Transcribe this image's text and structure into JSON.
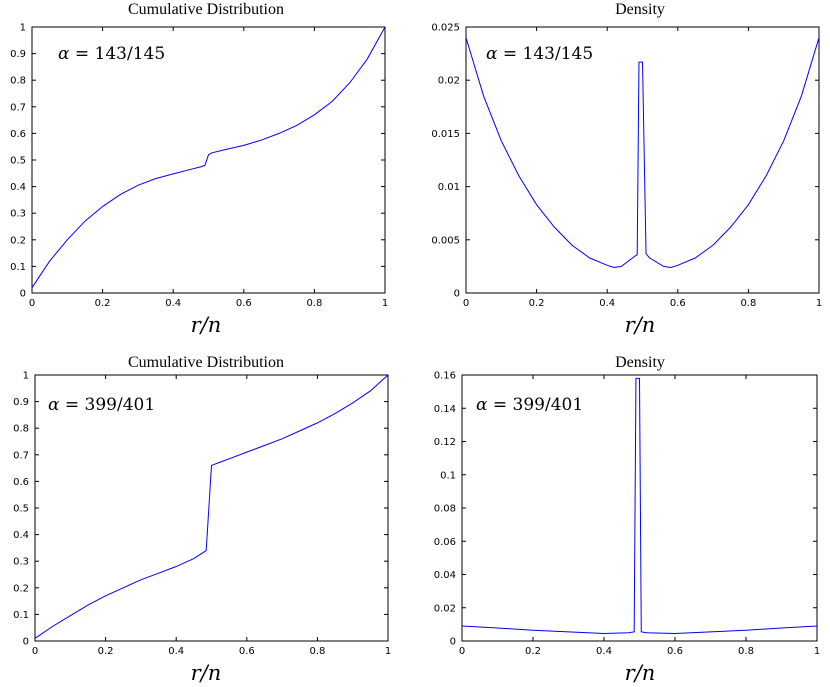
{
  "chart_data": [
    {
      "type": "line",
      "title": "Cumulative Distribution",
      "xlabel": "r/n",
      "ylabel": "",
      "annotation": {
        "symbol": "α",
        "text": " = 143/145"
      },
      "xlim": [
        0,
        1
      ],
      "ylim": [
        0,
        1
      ],
      "xticks": [
        "0",
        "0.2",
        "0.4",
        "0.6",
        "0.8",
        "1"
      ],
      "yticks": [
        "0",
        "0.1",
        "0.2",
        "0.3",
        "0.4",
        "0.5",
        "0.6",
        "0.7",
        "0.8",
        "0.9",
        "1"
      ],
      "color": "#0000ff",
      "series": [
        {
          "x": [
            0,
            0.05,
            0.1,
            0.15,
            0.2,
            0.25,
            0.3,
            0.35,
            0.4,
            0.45,
            0.48,
            0.49,
            0.5,
            0.51,
            0.55,
            0.6,
            0.65,
            0.7,
            0.75,
            0.8,
            0.85,
            0.9,
            0.95,
            1
          ],
          "y": [
            0.02,
            0.12,
            0.2,
            0.27,
            0.325,
            0.37,
            0.405,
            0.43,
            0.448,
            0.465,
            0.475,
            0.48,
            0.52,
            0.527,
            0.54,
            0.555,
            0.575,
            0.6,
            0.63,
            0.67,
            0.72,
            0.79,
            0.88,
            1.0
          ]
        }
      ]
    },
    {
      "type": "line",
      "title": "Density",
      "xlabel": "r/n",
      "ylabel": "",
      "annotation": {
        "symbol": "α",
        "text": " = 143/145"
      },
      "xlim": [
        0,
        1
      ],
      "ylim": [
        0,
        0.025
      ],
      "xticks": [
        "0",
        "0.2",
        "0.4",
        "0.6",
        "0.8",
        "1"
      ],
      "yticks": [
        "0",
        "0.005",
        "0.01",
        "0.015",
        "0.02",
        "0.025"
      ],
      "color": "#0000ff",
      "series": [
        {
          "x": [
            0,
            0.05,
            0.1,
            0.15,
            0.2,
            0.25,
            0.3,
            0.35,
            0.4,
            0.42,
            0.44,
            0.48,
            0.485,
            0.49,
            0.5,
            0.51,
            0.515,
            0.52,
            0.56,
            0.58,
            0.6,
            0.65,
            0.7,
            0.75,
            0.8,
            0.85,
            0.9,
            0.95,
            1
          ],
          "y": [
            0.024,
            0.0185,
            0.0143,
            0.011,
            0.0083,
            0.0062,
            0.0045,
            0.0033,
            0.0026,
            0.0024,
            0.0025,
            0.0035,
            0.0036,
            0.0217,
            0.0217,
            0.0037,
            0.0035,
            0.0033,
            0.0025,
            0.0024,
            0.0026,
            0.0033,
            0.0045,
            0.0062,
            0.0083,
            0.011,
            0.0143,
            0.0185,
            0.024
          ]
        }
      ]
    },
    {
      "type": "line",
      "title": "Cumulative Distribution",
      "xlabel": "r/n",
      "ylabel": "",
      "annotation": {
        "symbol": "α",
        "text": " = 399/401"
      },
      "xlim": [
        0,
        1
      ],
      "ylim": [
        0,
        1
      ],
      "xticks": [
        "0",
        "0.2",
        "0.4",
        "0.6",
        "0.8",
        "1"
      ],
      "yticks": [
        "0",
        "0.1",
        "0.2",
        "0.3",
        "0.4",
        "0.5",
        "0.6",
        "0.7",
        "0.8",
        "0.9",
        "1"
      ],
      "color": "#0000ff",
      "series": [
        {
          "x": [
            0,
            0.05,
            0.1,
            0.15,
            0.2,
            0.25,
            0.3,
            0.35,
            0.4,
            0.45,
            0.485,
            0.5,
            0.52,
            0.55,
            0.6,
            0.65,
            0.7,
            0.75,
            0.8,
            0.85,
            0.9,
            0.95,
            1
          ],
          "y": [
            0.01,
            0.055,
            0.095,
            0.135,
            0.17,
            0.2,
            0.23,
            0.255,
            0.28,
            0.31,
            0.34,
            0.66,
            0.67,
            0.685,
            0.71,
            0.735,
            0.76,
            0.79,
            0.82,
            0.855,
            0.895,
            0.94,
            1.0
          ]
        }
      ]
    },
    {
      "type": "line",
      "title": "Density",
      "xlabel": "r/n",
      "ylabel": "",
      "annotation": {
        "symbol": "α",
        "text": " = 399/401"
      },
      "xlim": [
        0,
        1
      ],
      "ylim": [
        0,
        0.16
      ],
      "xticks": [
        "0",
        "0.2",
        "0.4",
        "0.6",
        "0.8",
        "1"
      ],
      "yticks": [
        "0",
        "0.02",
        "0.04",
        "0.06",
        "0.08",
        "0.1",
        "0.12",
        "0.14",
        "0.16"
      ],
      "color": "#0000ff",
      "series": [
        {
          "x": [
            0,
            0.1,
            0.2,
            0.3,
            0.4,
            0.47,
            0.485,
            0.49,
            0.5,
            0.505,
            0.52,
            0.6,
            0.7,
            0.8,
            0.9,
            1
          ],
          "y": [
            0.009,
            0.0078,
            0.0065,
            0.0055,
            0.0045,
            0.005,
            0.0055,
            0.158,
            0.158,
            0.0055,
            0.005,
            0.0045,
            0.0055,
            0.0065,
            0.0078,
            0.009
          ]
        }
      ]
    }
  ]
}
